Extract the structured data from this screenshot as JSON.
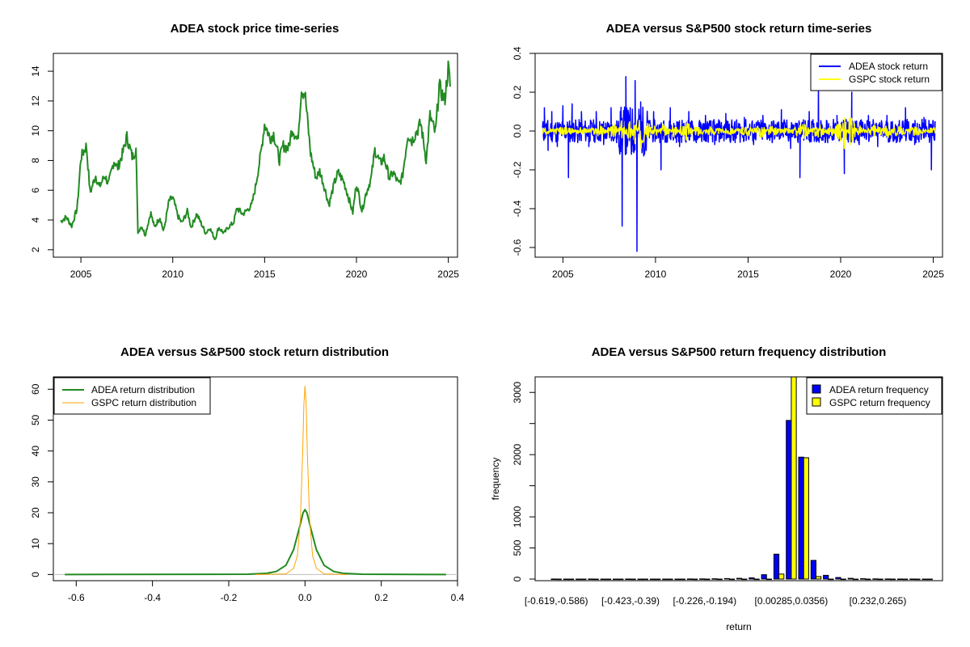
{
  "colors": {
    "price": "#228B22",
    "adea_return": "#0000FF",
    "gspc_return": "#FFFF00",
    "adea_density": "#228B22",
    "gspc_density": "#FFA500",
    "adea_bar": "#0000FF",
    "gspc_bar": "#FFFF00"
  },
  "chart_data": [
    {
      "type": "line",
      "title": "ADEA stock price time-series",
      "xlabel": "",
      "ylabel": "",
      "xlim": [
        2003.5,
        2025.5
      ],
      "ylim": [
        1.5,
        15.2
      ],
      "xticks": [
        2005,
        2010,
        2015,
        2020,
        2025
      ],
      "yticks": [
        2,
        4,
        6,
        8,
        10,
        12,
        14
      ],
      "series": [
        {
          "name": "ADEA price",
          "x": [
            2003.9,
            2004.2,
            2004.5,
            2004.8,
            2005.0,
            2005.3,
            2005.5,
            2005.8,
            2006.0,
            2006.3,
            2006.5,
            2006.8,
            2007.0,
            2007.3,
            2007.5,
            2007.8,
            2008.0,
            2008.1,
            2008.3,
            2008.5,
            2008.8,
            2009.0,
            2009.3,
            2009.5,
            2009.8,
            2010.0,
            2010.3,
            2010.5,
            2010.8,
            2011.0,
            2011.3,
            2011.5,
            2011.8,
            2012.0,
            2012.3,
            2012.5,
            2012.8,
            2013.0,
            2013.3,
            2013.5,
            2013.8,
            2014.0,
            2014.3,
            2014.5,
            2014.8,
            2015.0,
            2015.3,
            2015.5,
            2015.8,
            2016.0,
            2016.3,
            2016.5,
            2016.8,
            2017.0,
            2017.2,
            2017.5,
            2017.8,
            2018.0,
            2018.3,
            2018.5,
            2018.8,
            2019.0,
            2019.3,
            2019.5,
            2019.8,
            2020.0,
            2020.3,
            2020.5,
            2020.8,
            2021.0,
            2021.3,
            2021.5,
            2021.8,
            2022.0,
            2022.3,
            2022.5,
            2022.8,
            2023.0,
            2023.3,
            2023.5,
            2023.8,
            2024.0,
            2024.3,
            2024.5,
            2024.8,
            2025.0,
            2025.1
          ],
          "y": [
            3.9,
            4.2,
            3.6,
            4.8,
            8.2,
            9.0,
            5.8,
            7.0,
            6.2,
            7.0,
            6.4,
            8.0,
            7.5,
            8.6,
            9.6,
            8.2,
            8.8,
            3.2,
            3.6,
            3.0,
            4.5,
            3.5,
            4.2,
            3.2,
            5.3,
            5.5,
            4.2,
            3.8,
            4.6,
            3.5,
            4.4,
            3.9,
            3.1,
            3.5,
            2.7,
            3.5,
            3.1,
            3.5,
            3.8,
            4.8,
            4.4,
            4.6,
            5.0,
            6.2,
            8.5,
            10.5,
            9.5,
            9.8,
            8.0,
            9.0,
            8.8,
            10.2,
            9.3,
            12.8,
            12.5,
            8.5,
            6.8,
            7.3,
            6.0,
            5.0,
            6.5,
            7.2,
            6.6,
            5.8,
            4.5,
            6.5,
            4.6,
            5.7,
            6.8,
            8.7,
            7.8,
            8.2,
            6.8,
            7.2,
            6.4,
            6.9,
            9.8,
            9.3,
            10.0,
            10.5,
            8.0,
            11.0,
            9.8,
            13.0,
            12.0,
            14.3,
            13.0
          ]
        }
      ]
    },
    {
      "type": "line",
      "title": "ADEA versus S&P500 stock return time-series",
      "xlabel": "",
      "ylabel": "",
      "xlim": [
        2003.5,
        2025.5
      ],
      "ylim": [
        -0.65,
        0.4
      ],
      "xticks": [
        2005,
        2010,
        2015,
        2020,
        2025
      ],
      "yticks": [
        -0.6,
        -0.4,
        -0.2,
        0.0,
        0.2,
        0.4
      ],
      "ytick_labels": [
        "-0.6",
        "-0.4",
        "-0.2",
        "0.0",
        "0.2",
        "0.4"
      ],
      "legend": [
        "ADEA stock return",
        "GSPC stock return"
      ],
      "legend_position": "top-right",
      "series": [
        {
          "name": "ADEA stock return",
          "x": [
            2004.0,
            2004.2,
            2004.4,
            2004.7,
            2005.0,
            2005.3,
            2005.5,
            2005.8,
            2006.0,
            2006.4,
            2006.8,
            2007.2,
            2007.6,
            2007.9,
            2008.1,
            2008.2,
            2008.4,
            2008.7,
            2008.9,
            2009.0,
            2009.2,
            2009.5,
            2009.9,
            2010.3,
            2010.8,
            2011.3,
            2011.8,
            2012.2,
            2012.7,
            2013.2,
            2013.8,
            2014.3,
            2014.8,
            2015.3,
            2015.8,
            2016.3,
            2016.8,
            2017.3,
            2017.8,
            2018.3,
            2018.8,
            2019.3,
            2019.8,
            2020.2,
            2020.6,
            2021.0,
            2021.5,
            2022.0,
            2022.5,
            2023.0,
            2023.5,
            2024.0,
            2024.5,
            2024.9,
            2025.0
          ],
          "y": [
            0.12,
            -0.1,
            0.1,
            -0.08,
            0.13,
            -0.24,
            0.14,
            -0.06,
            0.1,
            -0.08,
            0.1,
            -0.07,
            0.12,
            -0.06,
            0.1,
            -0.49,
            0.28,
            -0.12,
            0.26,
            -0.62,
            0.15,
            -0.1,
            0.1,
            -0.2,
            0.12,
            -0.08,
            0.1,
            -0.06,
            0.08,
            -0.07,
            0.09,
            -0.06,
            0.07,
            -0.07,
            0.08,
            -0.06,
            0.11,
            -0.09,
            -0.24,
            0.1,
            0.26,
            -0.06,
            0.08,
            -0.22,
            0.2,
            -0.07,
            0.08,
            -0.08,
            0.08,
            -0.06,
            0.12,
            -0.07,
            0.07,
            -0.2,
            0.05
          ]
        },
        {
          "name": "GSPC stock return",
          "x": [
            2004.0,
            2005.0,
            2006.0,
            2007.0,
            2007.8,
            2008.2,
            2008.6,
            2008.9,
            2009.2,
            2009.6,
            2010.0,
            2010.4,
            2011.0,
            2011.7,
            2012.2,
            2013.0,
            2014.0,
            2015.0,
            2015.7,
            2016.2,
            2017.0,
            2018.0,
            2018.8,
            2019.5,
            2020.0,
            2020.2,
            2020.5,
            2021.0,
            2022.0,
            2022.5,
            2023.0,
            2024.0,
            2025.0
          ],
          "y": [
            0.01,
            -0.015,
            0.01,
            -0.02,
            0.03,
            -0.05,
            0.06,
            -0.09,
            0.09,
            -0.04,
            0.02,
            -0.03,
            0.02,
            -0.04,
            0.02,
            -0.015,
            0.01,
            -0.02,
            0.03,
            -0.02,
            0.01,
            -0.03,
            0.03,
            -0.02,
            0.05,
            -0.1,
            0.07,
            -0.02,
            0.03,
            -0.03,
            0.02,
            -0.015,
            0.01
          ]
        }
      ]
    },
    {
      "type": "line",
      "title": "ADEA versus S&P500 stock return distribution",
      "xlabel": "",
      "ylabel": "",
      "xlim": [
        -0.66,
        0.4
      ],
      "ylim": [
        -2,
        64
      ],
      "xticks": [
        -0.6,
        -0.4,
        -0.2,
        0.0,
        0.2,
        0.4
      ],
      "xtick_labels": [
        "-0.6",
        "-0.4",
        "-0.2",
        "0.0",
        "0.2",
        "0.4"
      ],
      "yticks": [
        0,
        10,
        20,
        30,
        40,
        50,
        60
      ],
      "legend": [
        "ADEA return distribution",
        "GSPC return distribution"
      ],
      "legend_position": "top-left",
      "series": [
        {
          "name": "ADEA return distribution",
          "x": [
            -0.63,
            -0.15,
            -0.1,
            -0.075,
            -0.05,
            -0.03,
            -0.015,
            -0.005,
            0.0,
            0.005,
            0.015,
            0.03,
            0.05,
            0.075,
            0.1,
            0.15,
            0.37
          ],
          "y": [
            0.0,
            0.1,
            0.4,
            1.0,
            3.0,
            8.0,
            15.0,
            20.0,
            21.0,
            20.0,
            15.0,
            8.0,
            3.0,
            1.0,
            0.4,
            0.1,
            0.0
          ]
        },
        {
          "name": "GSPC return distribution",
          "x": [
            -0.13,
            -0.05,
            -0.03,
            -0.02,
            -0.012,
            -0.006,
            -0.003,
            0.0,
            0.003,
            0.006,
            0.012,
            0.02,
            0.03,
            0.05,
            0.11
          ],
          "y": [
            0.0,
            0.2,
            2.0,
            6.0,
            18.0,
            40.0,
            55.0,
            61.0,
            55.0,
            40.0,
            18.0,
            6.0,
            2.0,
            0.2,
            0.0
          ]
        }
      ]
    },
    {
      "type": "bar",
      "title": "ADEA versus S&P500 return frequency distribution",
      "xlabel": "return",
      "ylabel": "frequency",
      "ylim": [
        0,
        3250
      ],
      "yticks": [
        0,
        500,
        1000,
        2000,
        3000
      ],
      "minor_yticks": [
        1500,
        2500
      ],
      "xtick_labels": [
        "[-0.619,-0.586)",
        "[-0.423,-0.39)",
        "[-0.226,-0.194)",
        "[0.00285,0.0356)",
        "[0.232,0.265)"
      ],
      "xtick_bins": [
        0,
        6,
        12,
        19,
        26
      ],
      "legend": [
        "ADEA return frequency",
        "GSPC return frequency"
      ],
      "legend_position": "top-right",
      "n_bins": 31,
      "series": [
        {
          "name": "ADEA return frequency",
          "values": [
            1,
            0,
            0,
            1,
            0,
            0,
            1,
            0,
            0,
            0,
            0,
            2,
            3,
            5,
            8,
            12,
            20,
            70,
            400,
            2550,
            1960,
            300,
            60,
            25,
            12,
            6,
            3,
            2,
            1,
            1,
            0
          ]
        },
        {
          "name": "GSPC return frequency",
          "values": [
            0,
            0,
            0,
            0,
            0,
            0,
            0,
            0,
            0,
            0,
            0,
            0,
            0,
            0,
            0,
            0,
            0,
            0,
            80,
            3300,
            1950,
            40,
            0,
            0,
            0,
            0,
            0,
            0,
            0,
            0,
            0
          ]
        }
      ]
    }
  ]
}
